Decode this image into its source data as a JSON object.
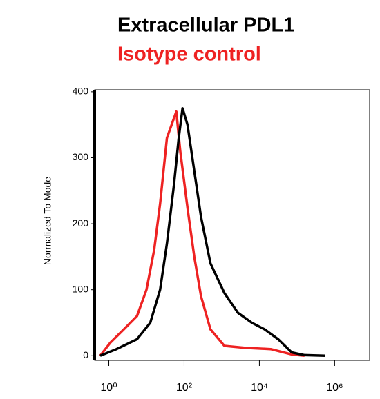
{
  "chart_data": {
    "type": "line",
    "ylabel": "Normalized To Mode",
    "xscale": "log",
    "xlim": [
      0.42,
      8500000
    ],
    "ylim": [
      -7,
      403
    ],
    "xticks": [
      {
        "value": 1,
        "label": "10⁰"
      },
      {
        "value": 100,
        "label": "10²"
      },
      {
        "value": 10000,
        "label": "10⁴"
      },
      {
        "value": 1000000,
        "label": "10⁶"
      }
    ],
    "yticks": [
      0,
      100,
      200,
      300,
      400
    ],
    "series": [
      {
        "name": "Extracellular PDL1",
        "color": "#000000",
        "x": [
          0.59,
          1.6,
          5.6,
          12.6,
          23,
          35,
          54,
          72,
          91,
          123,
          186,
          282,
          501,
          1175,
          2692,
          6310,
          13800,
          31600,
          72400,
          158500,
          562000
        ],
        "values": [
          0,
          10,
          25,
          50,
          100,
          170,
          260,
          330,
          375,
          350,
          280,
          210,
          140,
          95,
          65,
          50,
          40,
          25,
          5,
          1,
          0
        ]
      },
      {
        "name": "Isotype control",
        "color": "#ee2222",
        "x": [
          0.59,
          1.1,
          2.5,
          5.6,
          10,
          16,
          23,
          35,
          62,
          79,
          126,
          186,
          282,
          501,
          1175,
          3981,
          19950,
          72400,
          158500
        ],
        "values": [
          0,
          20,
          40,
          60,
          100,
          160,
          230,
          330,
          370,
          310,
          220,
          150,
          90,
          40,
          15,
          12,
          10,
          2,
          0
        ]
      }
    ]
  }
}
